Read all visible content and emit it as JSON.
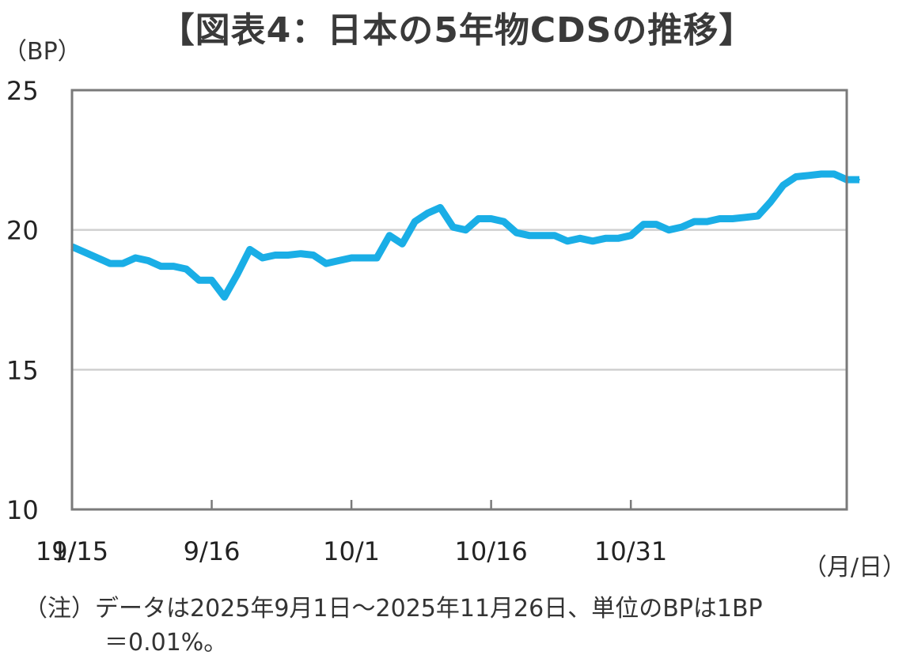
{
  "page": {
    "title": "【図表4：日本の5年物CDSの推移】",
    "y_unit": "（BP）",
    "x_unit": "（月/日）",
    "note_line1": "（注）データは2025年9月1日～2025年11月26日、単位のBPは1BP",
    "note_line2": "＝0.01%。"
  },
  "chart_data": {
    "type": "line",
    "title": "【図表4：日本の5年物CDSの推移】",
    "xlabel": "（月/日）",
    "ylabel": "（BP）",
    "ylim": [
      10,
      25
    ],
    "yticks": [
      10,
      15,
      20,
      25
    ],
    "xtick_labels": [
      "9/1",
      "9/16",
      "10/1",
      "10/16",
      "10/31",
      "11/15"
    ],
    "grid": "horizontal",
    "line_color": "#1aaee6",
    "series": [
      {
        "x": [
          "9/1",
          "9/2",
          "9/3",
          "9/4",
          "9/5",
          "9/8",
          "9/9",
          "9/10",
          "9/11",
          "9/12",
          "9/15",
          "9/16",
          "9/17",
          "9/18",
          "9/19",
          "9/22",
          "9/23",
          "9/24",
          "9/25",
          "9/26",
          "9/29",
          "9/30",
          "10/1",
          "10/2",
          "10/3",
          "10/6",
          "10/7",
          "10/8",
          "10/9",
          "10/10",
          "10/13",
          "10/14",
          "10/15",
          "10/16",
          "10/17",
          "10/20",
          "10/21",
          "10/22",
          "10/23",
          "10/24",
          "10/27",
          "10/28",
          "10/29",
          "10/30",
          "10/31",
          "11/3",
          "11/4",
          "11/5",
          "11/6",
          "11/7",
          "11/10",
          "11/11",
          "11/12",
          "11/13",
          "11/14",
          "11/17",
          "11/18",
          "11/19",
          "11/20",
          "11/21",
          "11/24",
          "11/25",
          "11/26"
        ],
        "values": [
          19.4,
          19.2,
          19.0,
          18.8,
          18.8,
          19.0,
          18.9,
          18.7,
          18.7,
          18.6,
          18.2,
          18.2,
          17.6,
          18.4,
          19.3,
          19.0,
          19.1,
          19.1,
          19.15,
          19.1,
          18.8,
          18.9,
          19.0,
          19.0,
          19.0,
          19.8,
          19.5,
          20.3,
          20.6,
          20.8,
          20.1,
          20.0,
          20.4,
          20.4,
          20.3,
          19.9,
          19.8,
          19.8,
          19.8,
          19.6,
          19.7,
          19.6,
          19.7,
          19.7,
          19.8,
          20.2,
          20.2,
          20.0,
          20.1,
          20.3,
          20.3,
          20.4,
          20.4,
          20.45,
          20.5,
          21.0,
          21.6,
          21.9,
          21.95,
          22.0,
          22.0,
          21.8,
          21.8
        ]
      }
    ]
  }
}
